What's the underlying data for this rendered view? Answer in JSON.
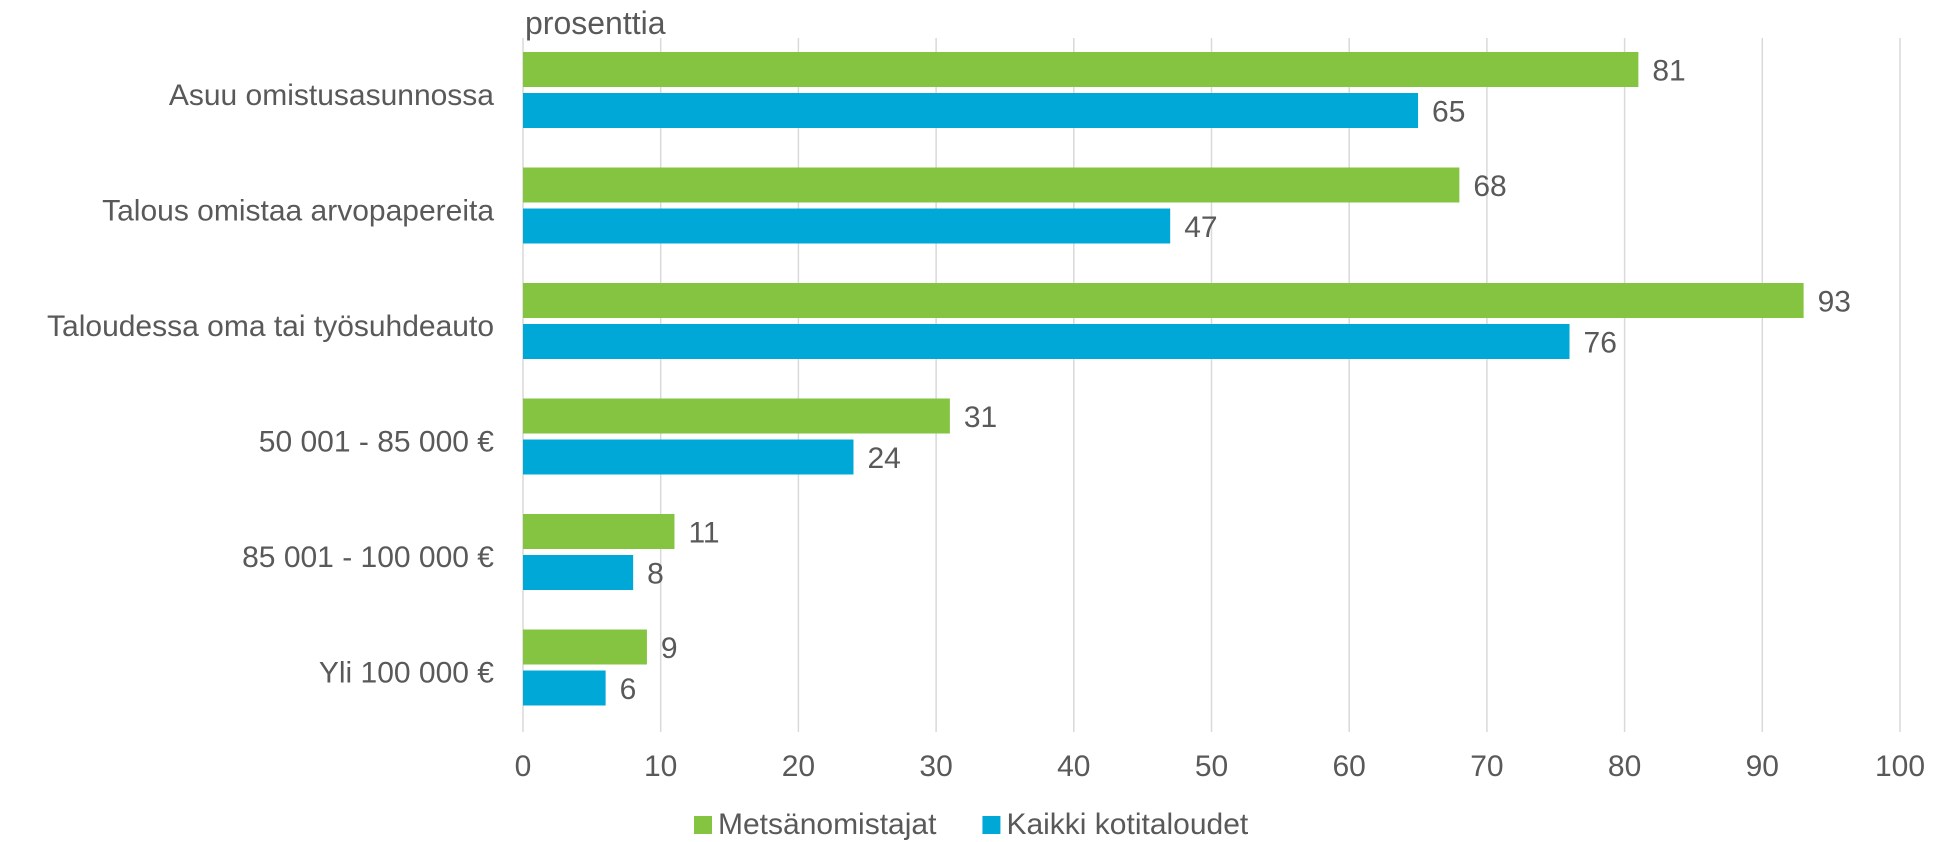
{
  "chart_data": {
    "type": "bar",
    "orientation": "horizontal",
    "title": "",
    "unit_label": "prosenttia",
    "categories": [
      "Asuu omistusasunnossa",
      "Talous omistaa arvopapereita",
      "Taloudessa oma tai työsuhdeauto",
      "50 001 - 85 000 €",
      "85 001 - 100 000 €",
      "Yli 100 000 €"
    ],
    "series": [
      {
        "name": "Metsänomistajat",
        "color": "#84c441",
        "values": [
          81,
          68,
          93,
          31,
          11,
          9
        ]
      },
      {
        "name": "Kaikki kotitaloudet",
        "color": "#00a8d8",
        "values": [
          65,
          47,
          76,
          24,
          8,
          6
        ]
      }
    ],
    "xlim": [
      0,
      100
    ],
    "x_ticks": [
      0,
      10,
      20,
      30,
      40,
      50,
      60,
      70,
      80,
      90,
      100
    ],
    "grid": true,
    "grid_color": "#d9d9d9",
    "legend_position": "bottom",
    "data_labels": true
  }
}
